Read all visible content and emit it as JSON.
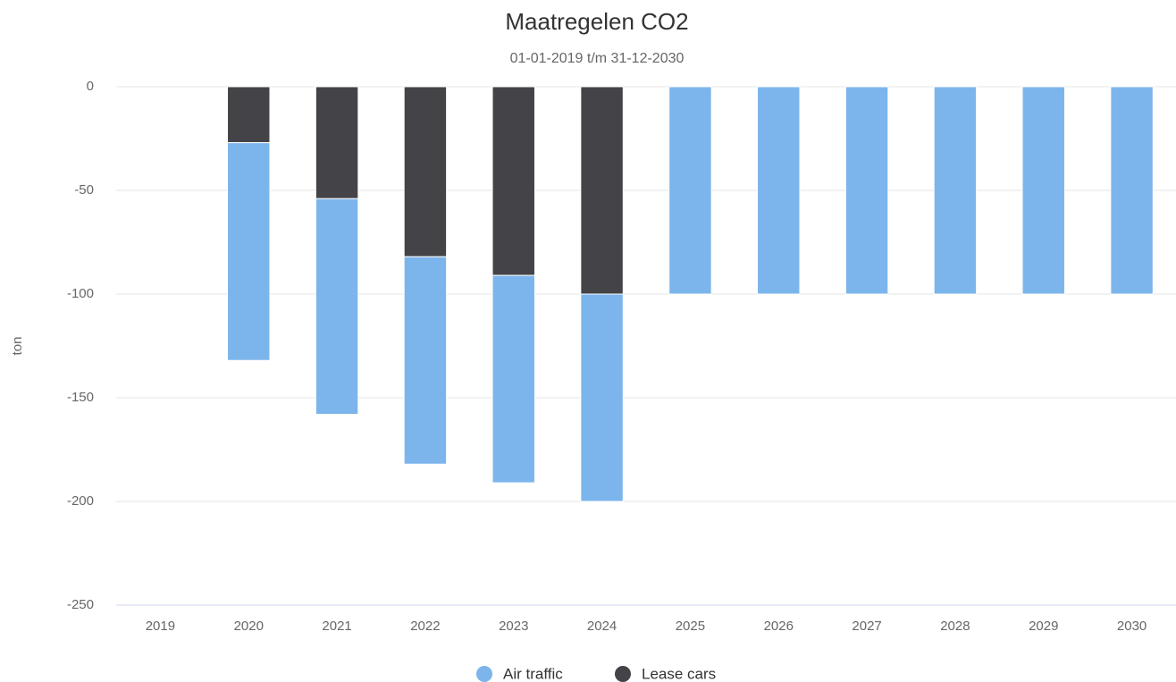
{
  "chart_data": {
    "type": "bar",
    "stacked": true,
    "title": "Maatregelen CO2",
    "subtitle": "01-01-2019 t/m 31-12-2030",
    "y_label": "ton",
    "categories": [
      "2019",
      "2020",
      "2021",
      "2022",
      "2023",
      "2024",
      "2025",
      "2026",
      "2027",
      "2028",
      "2029",
      "2030"
    ],
    "series": [
      {
        "name": "Air traffic",
        "color": "#7cb5ec",
        "values": [
          null,
          -105,
          -104,
          -100,
          -100,
          -100,
          -100,
          -100,
          -100,
          -100,
          -100,
          -100
        ]
      },
      {
        "name": "Lease cars",
        "color": "#434348",
        "values": [
          null,
          -27,
          -54,
          -82,
          -91,
          -100,
          0,
          0,
          0,
          0,
          0,
          0
        ]
      }
    ],
    "stack_order": [
      1,
      0
    ],
    "ylim": [
      -250,
      0
    ],
    "yticks": [
      -250,
      -200,
      -150,
      -100,
      -50,
      0
    ],
    "grid": true,
    "legend": "bottom"
  }
}
